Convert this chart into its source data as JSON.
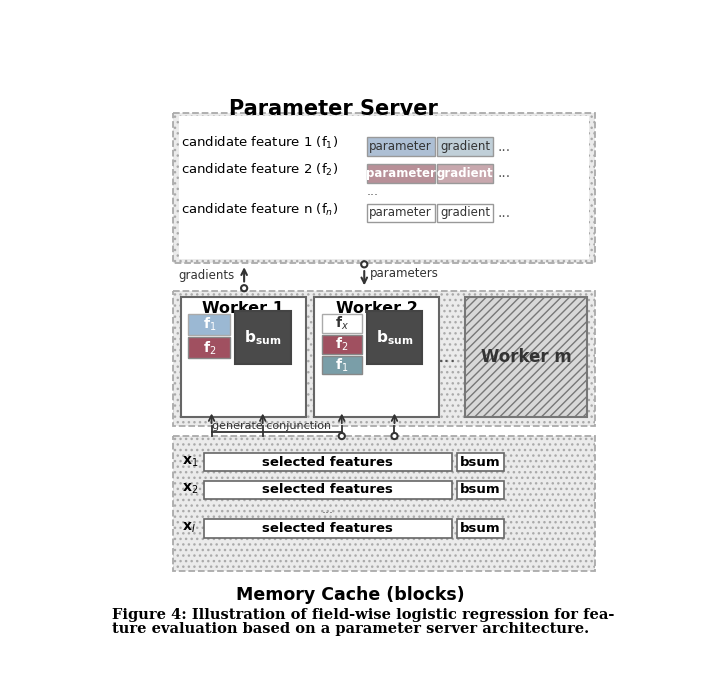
{
  "title": "Parameter Server",
  "memory_cache_label": "Memory Cache (blocks)",
  "caption_line1": "Figure 4: Illustration of field-wise logistic regression for fea-",
  "caption_line2": "ture evaluation based on a parameter server architecture.",
  "colors": {
    "f1_blue": "#9bb8d3",
    "f2_red": "#a05060",
    "f1_teal": "#7a9ea8",
    "bsum_dark": "#4a4a4a",
    "param_blue1": "#adbfd4",
    "grad_blue1": "#c0cfd8",
    "param_pink2": "#b89098",
    "grad_pink2": "#c8a8ae",
    "hatch_dot_color": "#cccccc",
    "border_color": "#888888",
    "worker_border": "#666666",
    "arrow_color": "#333333"
  },
  "layout": {
    "fig_w": 7.13,
    "fig_h": 6.82,
    "dpi": 100
  }
}
